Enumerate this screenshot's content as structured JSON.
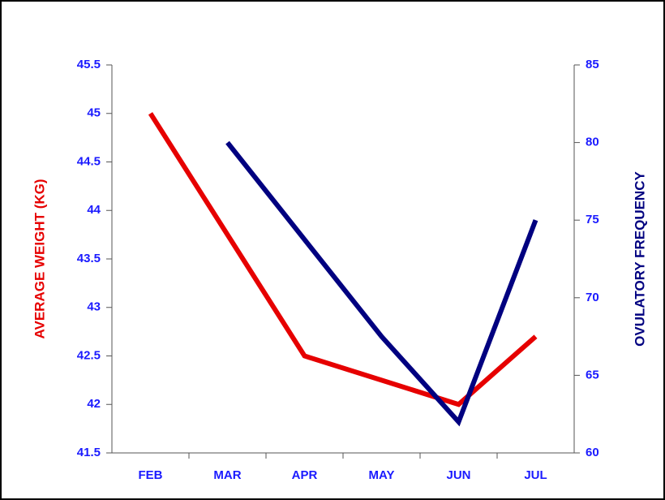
{
  "chart_data": {
    "type": "line",
    "categories": [
      "FEB",
      "MAR",
      "APR",
      "MAY",
      "JUN",
      "JUL"
    ],
    "series": [
      {
        "name": "AVERAGE WEIGHT (KG)",
        "color": "#e60000",
        "values": [
          45,
          43.75,
          42.5,
          42.25,
          42,
          42.7
        ]
      },
      {
        "name": "OVULATORY FREQUENCY",
        "color": "#000080",
        "axis": "y2",
        "values": [
          null,
          80,
          73.75,
          67.5,
          62,
          75
        ]
      }
    ],
    "ylim": [
      41.5,
      45.5
    ],
    "yticks": [
      41.5,
      42,
      42.5,
      43,
      43.5,
      44,
      44.5,
      45,
      45.5
    ],
    "y2lim": [
      60,
      85
    ],
    "y2ticks": [
      60,
      65,
      70,
      75,
      80,
      85
    ],
    "tick_color": "#1a1aff"
  }
}
